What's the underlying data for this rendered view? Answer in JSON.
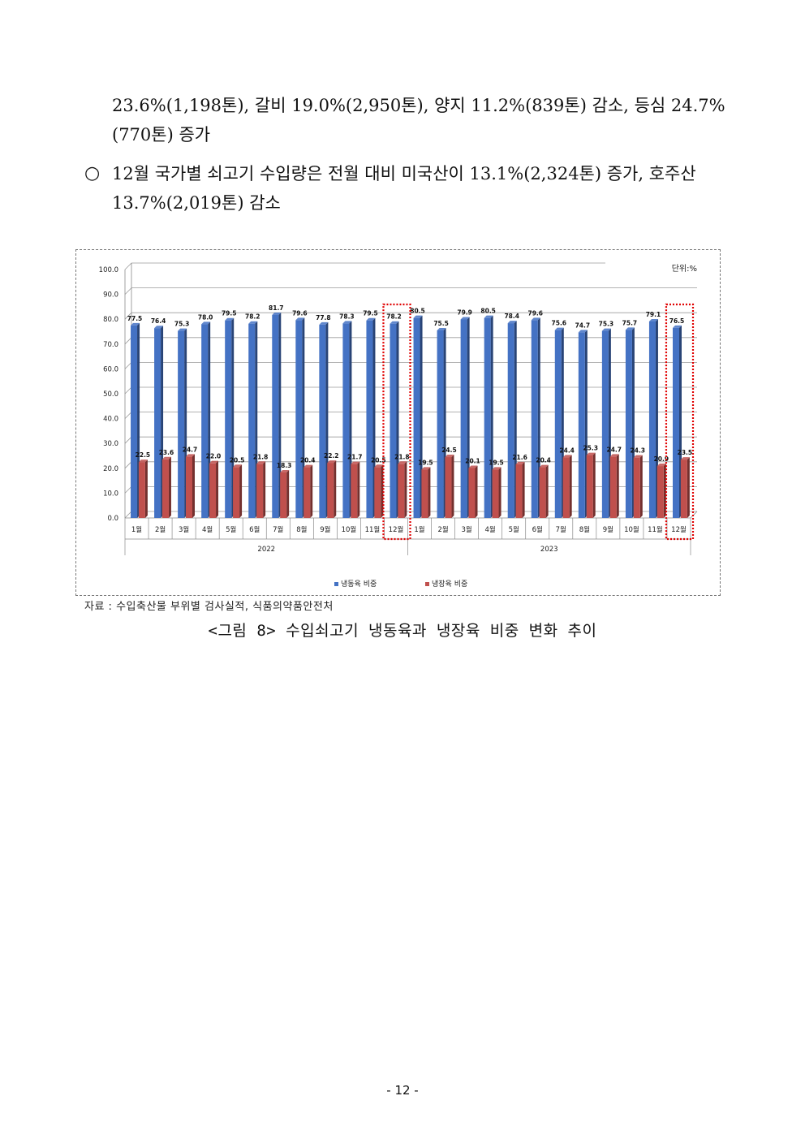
{
  "text": {
    "para1": "23.6%(1,198톤), 갈비 19.0%(2,950톤), 양지 11.2%(839톤) 감소, 등심 24.7%(770톤) 증가",
    "bullet": "○",
    "para2": "12월 국가별 쇠고기 수입량은 전월 대비 미국산이 13.1%(2,324톤) 증가, 호주산 13.7%(2,019톤) 감소",
    "source": "자료 : 수입축산물 부위별 검사실적, 식품의약품안전처",
    "caption": "<그림 8> 수입쇠고기 냉동육과 냉장육 비중 변화 추이",
    "page_number": "- 12 -"
  },
  "colors": {
    "frozen": "#4472C4",
    "chilled": "#C0504D",
    "highlight": "#E00000"
  },
  "chart_data": {
    "type": "bar",
    "unit_label": "단위:%",
    "ylim": [
      0,
      100
    ],
    "yticks": [
      "0.0",
      "10.0",
      "20.0",
      "30.0",
      "40.0",
      "50.0",
      "60.0",
      "70.0",
      "80.0",
      "90.0",
      "100.0"
    ],
    "grid": true,
    "legend_position": "bottom",
    "categories": [
      "1월",
      "2월",
      "3월",
      "4월",
      "5월",
      "6월",
      "7월",
      "8월",
      "9월",
      "10월",
      "11월",
      "12월",
      "1월",
      "2월",
      "3월",
      "4월",
      "5월",
      "6월",
      "7월",
      "8월",
      "9월",
      "10월",
      "11월",
      "12월"
    ],
    "groups": [
      {
        "label": "2022",
        "count": 12
      },
      {
        "label": "2023",
        "count": 12
      }
    ],
    "series": [
      {
        "name": "냉동육 비중",
        "values": [
          77.5,
          76.4,
          75.3,
          78.0,
          79.5,
          78.2,
          81.7,
          79.6,
          77.8,
          78.3,
          79.5,
          78.2,
          80.5,
          75.5,
          79.9,
          80.5,
          78.4,
          79.6,
          75.6,
          74.7,
          75.3,
          75.7,
          79.1,
          76.5
        ],
        "labels": [
          "77.5",
          "76.4",
          "75.3",
          "78.0",
          "79.5",
          "78.2",
          "81.7",
          "79.6",
          "77.8",
          "78.3",
          "79.5",
          "78.2",
          "80.5",
          "75.5",
          "79.9",
          "80.5",
          "78.4",
          "79.6",
          "75.6",
          "74.7",
          "75.3",
          "75.7",
          "79.1",
          "76.5"
        ]
      },
      {
        "name": "냉장육 비중",
        "values": [
          22.5,
          23.6,
          24.7,
          22.0,
          20.5,
          21.8,
          18.3,
          20.4,
          22.2,
          21.7,
          20.5,
          21.8,
          19.5,
          24.5,
          20.1,
          19.5,
          21.6,
          20.4,
          24.4,
          25.3,
          24.7,
          24.3,
          20.9,
          23.5
        ],
        "labels": [
          "22.5",
          "23.6",
          "24.7",
          "22.0",
          "20.5",
          "21.8",
          "18.3",
          "20.4",
          "22.2",
          "21.7",
          "20.5",
          "21.8",
          "19.5",
          "24.5",
          "20.1",
          "19.5",
          "21.6",
          "20.4",
          "24.4",
          "25.3",
          "24.7",
          "24.3",
          "20.9",
          "23.5"
        ]
      }
    ],
    "highlighted_categories": [
      11,
      23
    ]
  }
}
